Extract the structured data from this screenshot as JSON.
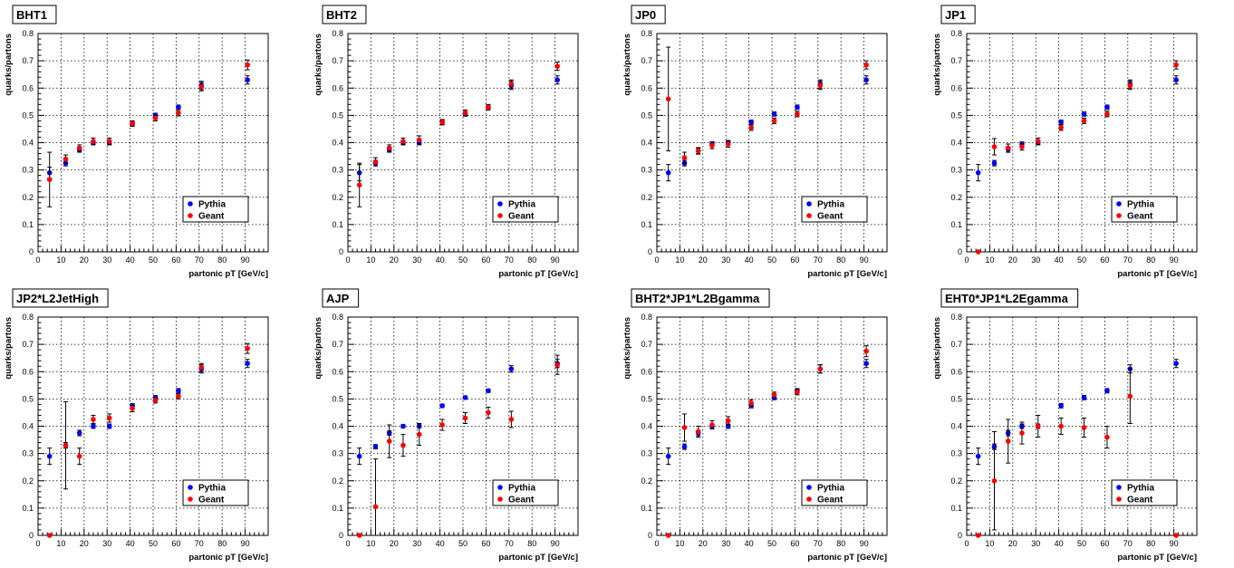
{
  "legend": {
    "pythia": "Pythia",
    "geant": "Geant"
  },
  "colors": {
    "pythia": "#0000ff",
    "geant": "#ff0000"
  },
  "chart_data": [
    {
      "type": "scatter",
      "title": "BHT1",
      "xlabel": "partonic pT [GeV/c]",
      "ylabel": "quarks/partons",
      "xlim": [
        0,
        100
      ],
      "ylim": [
        0,
        0.8
      ],
      "xticks": [
        0,
        10,
        20,
        30,
        40,
        50,
        60,
        70,
        80,
        90
      ],
      "yticks": [
        0,
        0.1,
        0.2,
        0.3,
        0.4,
        0.5,
        0.6,
        0.7,
        0.8
      ],
      "grid": true,
      "legend_position": "bottom-right",
      "series": [
        {
          "name": "Pythia",
          "x": [
            5,
            12,
            18,
            24,
            31,
            41,
            51,
            61,
            71,
            91
          ],
          "y": [
            0.29,
            0.325,
            0.375,
            0.4,
            0.4,
            0.47,
            0.5,
            0.53,
            0.61,
            0.63
          ],
          "err": [
            0.02,
            0.01,
            0.01,
            0.008,
            0.008,
            0.008,
            0.008,
            0.008,
            0.015,
            0.015
          ]
        },
        {
          "name": "Geant",
          "x": [
            5,
            12,
            18,
            24,
            31,
            41,
            51,
            61,
            71,
            91
          ],
          "y": [
            0.265,
            0.34,
            0.38,
            0.405,
            0.405,
            0.47,
            0.49,
            0.51,
            0.605,
            0.685
          ],
          "err": [
            0.1,
            0.015,
            0.012,
            0.012,
            0.012,
            0.01,
            0.01,
            0.012,
            0.015,
            0.018
          ]
        }
      ]
    },
    {
      "type": "scatter",
      "title": "BHT2",
      "xlabel": "partonic pT [GeV/c]",
      "ylabel": "quarks/partons",
      "xlim": [
        0,
        100
      ],
      "ylim": [
        0,
        0.8
      ],
      "xticks": [
        0,
        10,
        20,
        30,
        40,
        50,
        60,
        70,
        80,
        90
      ],
      "yticks": [
        0,
        0.1,
        0.2,
        0.3,
        0.4,
        0.5,
        0.6,
        0.7,
        0.8
      ],
      "grid": true,
      "legend_position": "bottom-right",
      "series": [
        {
          "name": "Pythia",
          "x": [
            5,
            12,
            18,
            24,
            31,
            41,
            51,
            61,
            71,
            91
          ],
          "y": [
            0.29,
            0.325,
            0.375,
            0.4,
            0.4,
            0.475,
            0.505,
            0.53,
            0.61,
            0.63
          ],
          "err": [
            0.03,
            0.01,
            0.01,
            0.008,
            0.008,
            0.008,
            0.008,
            0.008,
            0.015,
            0.015
          ]
        },
        {
          "name": "Geant",
          "x": [
            5,
            12,
            18,
            24,
            31,
            41,
            51,
            61,
            71,
            91
          ],
          "y": [
            0.245,
            0.33,
            0.38,
            0.405,
            0.41,
            0.475,
            0.51,
            0.53,
            0.615,
            0.68
          ],
          "err": [
            0.08,
            0.015,
            0.012,
            0.012,
            0.015,
            0.01,
            0.01,
            0.01,
            0.015,
            0.015
          ]
        }
      ]
    },
    {
      "type": "scatter",
      "title": "JP0",
      "xlabel": "partonic pT [GeV/c]",
      "ylabel": "quarks/partons",
      "xlim": [
        0,
        100
      ],
      "ylim": [
        0,
        0.8
      ],
      "xticks": [
        0,
        10,
        20,
        30,
        40,
        50,
        60,
        70,
        80,
        90
      ],
      "yticks": [
        0,
        0.1,
        0.2,
        0.3,
        0.4,
        0.5,
        0.6,
        0.7,
        0.8
      ],
      "grid": true,
      "legend_position": "bottom-right",
      "series": [
        {
          "name": "Pythia",
          "x": [
            5,
            12,
            18,
            24,
            31,
            41,
            51,
            61,
            71,
            91
          ],
          "y": [
            0.29,
            0.325,
            0.37,
            0.395,
            0.4,
            0.475,
            0.505,
            0.53,
            0.615,
            0.63
          ],
          "err": [
            0.03,
            0.01,
            0.01,
            0.008,
            0.008,
            0.008,
            0.008,
            0.008,
            0.015,
            0.015
          ]
        },
        {
          "name": "Geant",
          "x": [
            5,
            12,
            18,
            24,
            31,
            41,
            51,
            61,
            71,
            91
          ],
          "y": [
            0.56,
            0.345,
            0.37,
            0.39,
            0.395,
            0.455,
            0.48,
            0.505,
            0.61,
            0.685
          ],
          "err": [
            0.19,
            0.02,
            0.012,
            0.012,
            0.012,
            0.01,
            0.01,
            0.01,
            0.015,
            0.015
          ]
        }
      ]
    },
    {
      "type": "scatter",
      "title": "JP1",
      "xlabel": "partonic pT [GeV/c]",
      "ylabel": "quarks/partons",
      "xlim": [
        0,
        100
      ],
      "ylim": [
        0,
        0.8
      ],
      "xticks": [
        0,
        10,
        20,
        30,
        40,
        50,
        60,
        70,
        80,
        90
      ],
      "yticks": [
        0,
        0.1,
        0.2,
        0.3,
        0.4,
        0.5,
        0.6,
        0.7,
        0.8
      ],
      "grid": true,
      "legend_position": "bottom-right",
      "series": [
        {
          "name": "Pythia",
          "x": [
            5,
            12,
            18,
            24,
            31,
            41,
            51,
            61,
            71,
            91
          ],
          "y": [
            0.29,
            0.325,
            0.375,
            0.395,
            0.4,
            0.475,
            0.505,
            0.53,
            0.615,
            0.63
          ],
          "err": [
            0.03,
            0.01,
            0.01,
            0.008,
            0.008,
            0.008,
            0.008,
            0.008,
            0.015,
            0.015
          ]
        },
        {
          "name": "Geant",
          "x": [
            5,
            12,
            18,
            24,
            31,
            41,
            51,
            61,
            71,
            91
          ],
          "y": [
            0,
            0.385,
            0.38,
            0.385,
            0.405,
            0.455,
            0.48,
            0.505,
            0.61,
            0.685
          ],
          "err": [
            0,
            0.03,
            0.015,
            0.012,
            0.012,
            0.01,
            0.01,
            0.01,
            0.015,
            0.015
          ]
        }
      ]
    },
    {
      "type": "scatter",
      "title": "JP2*L2JetHigh",
      "xlabel": "partonic pT [GeV/c]",
      "ylabel": "quarks/partons",
      "xlim": [
        0,
        100
      ],
      "ylim": [
        0,
        0.8
      ],
      "xticks": [
        0,
        10,
        20,
        30,
        40,
        50,
        60,
        70,
        80,
        90
      ],
      "yticks": [
        0,
        0.1,
        0.2,
        0.3,
        0.4,
        0.5,
        0.6,
        0.7,
        0.8
      ],
      "grid": true,
      "legend_position": "bottom-right",
      "series": [
        {
          "name": "Pythia",
          "x": [
            5,
            12,
            18,
            24,
            31,
            41,
            51,
            61,
            71,
            91
          ],
          "y": [
            0.29,
            0.33,
            0.375,
            0.4,
            0.4,
            0.475,
            0.505,
            0.53,
            0.61,
            0.63
          ],
          "err": [
            0.03,
            0.01,
            0.01,
            0.008,
            0.008,
            0.008,
            0.008,
            0.008,
            0.015,
            0.015
          ]
        },
        {
          "name": "Geant",
          "x": [
            5,
            12,
            18,
            24,
            31,
            41,
            51,
            61,
            71,
            91
          ],
          "y": [
            0,
            0.33,
            0.29,
            0.425,
            0.43,
            0.465,
            0.495,
            0.51,
            0.615,
            0.685
          ],
          "err": [
            0,
            0.16,
            0.03,
            0.015,
            0.015,
            0.012,
            0.01,
            0.01,
            0.015,
            0.018
          ]
        }
      ]
    },
    {
      "type": "scatter",
      "title": "AJP",
      "xlabel": "partonic pT [GeV/c]",
      "ylabel": "quarks/partons",
      "xlim": [
        0,
        100
      ],
      "ylim": [
        0,
        0.8
      ],
      "xticks": [
        0,
        10,
        20,
        30,
        40,
        50,
        60,
        70,
        80,
        90
      ],
      "yticks": [
        0,
        0.1,
        0.2,
        0.3,
        0.4,
        0.5,
        0.6,
        0.7,
        0.8
      ],
      "grid": true,
      "legend_position": "bottom-right",
      "series": [
        {
          "name": "Pythia",
          "x": [
            5,
            12,
            18,
            24,
            31,
            41,
            51,
            61,
            71,
            91
          ],
          "y": [
            0.29,
            0.325,
            0.375,
            0.4,
            0.4,
            0.475,
            0.505,
            0.53,
            0.61,
            0.63
          ],
          "err": [
            0.03,
            0.008,
            0.008,
            0.006,
            0.006,
            0.006,
            0.006,
            0.006,
            0.012,
            0.015
          ]
        },
        {
          "name": "Geant",
          "x": [
            5,
            12,
            18,
            24,
            31,
            41,
            51,
            61,
            71,
            91
          ],
          "y": [
            0,
            0.105,
            0.345,
            0.33,
            0.37,
            0.405,
            0.43,
            0.45,
            0.425,
            0.625
          ],
          "err": [
            0,
            0.175,
            0.06,
            0.04,
            0.04,
            0.02,
            0.02,
            0.02,
            0.03,
            0.035
          ]
        }
      ]
    },
    {
      "type": "scatter",
      "title": "BHT2*JP1*L2Bgamma",
      "xlabel": "partonic pT [GeV/c]",
      "ylabel": "quarks/partons",
      "xlim": [
        0,
        100
      ],
      "ylim": [
        0,
        0.8
      ],
      "xticks": [
        0,
        10,
        20,
        30,
        40,
        50,
        60,
        70,
        80,
        90
      ],
      "yticks": [
        0,
        0.1,
        0.2,
        0.3,
        0.4,
        0.5,
        0.6,
        0.7,
        0.8
      ],
      "grid": true,
      "legend_position": "bottom-right",
      "series": [
        {
          "name": "Pythia",
          "x": [
            5,
            12,
            18,
            24,
            31,
            41,
            51,
            61,
            71,
            91
          ],
          "y": [
            0.29,
            0.325,
            0.375,
            0.4,
            0.4,
            0.475,
            0.505,
            0.53,
            0.61,
            0.63
          ],
          "err": [
            0.03,
            0.01,
            0.01,
            0.008,
            0.008,
            0.008,
            0.008,
            0.008,
            0.015,
            0.015
          ]
        },
        {
          "name": "Geant",
          "x": [
            5,
            12,
            18,
            24,
            31,
            41,
            51,
            61,
            71,
            91
          ],
          "y": [
            0,
            0.395,
            0.38,
            0.405,
            0.42,
            0.485,
            0.515,
            0.525,
            0.61,
            0.675
          ],
          "err": [
            0,
            0.05,
            0.02,
            0.015,
            0.015,
            0.012,
            0.01,
            0.01,
            0.015,
            0.02
          ]
        }
      ]
    },
    {
      "type": "scatter",
      "title": "EHT0*JP1*L2Egamma",
      "xlabel": "partonic pT [GeV/c]",
      "ylabel": "quarks/partons",
      "xlim": [
        0,
        100
      ],
      "ylim": [
        0,
        0.8
      ],
      "xticks": [
        0,
        10,
        20,
        30,
        40,
        50,
        60,
        70,
        80,
        90
      ],
      "yticks": [
        0,
        0.1,
        0.2,
        0.3,
        0.4,
        0.5,
        0.6,
        0.7,
        0.8
      ],
      "grid": true,
      "legend_position": "bottom-right",
      "series": [
        {
          "name": "Pythia",
          "x": [
            5,
            12,
            18,
            24,
            31,
            41,
            51,
            61,
            71,
            91
          ],
          "y": [
            0.29,
            0.325,
            0.375,
            0.4,
            0.4,
            0.475,
            0.505,
            0.53,
            0.61,
            0.63
          ],
          "err": [
            0.03,
            0.01,
            0.01,
            0.008,
            0.008,
            0.008,
            0.008,
            0.008,
            0.015,
            0.015
          ]
        },
        {
          "name": "Geant",
          "x": [
            5,
            12,
            18,
            24,
            31,
            41,
            51,
            61,
            71,
            91
          ],
          "y": [
            0,
            0.2,
            0.345,
            0.375,
            0.4,
            0.4,
            0.395,
            0.36,
            0.51,
            0
          ],
          "err": [
            0,
            0.18,
            0.08,
            0.04,
            0.04,
            0.03,
            0.035,
            0.04,
            0.1,
            0
          ]
        }
      ]
    }
  ]
}
